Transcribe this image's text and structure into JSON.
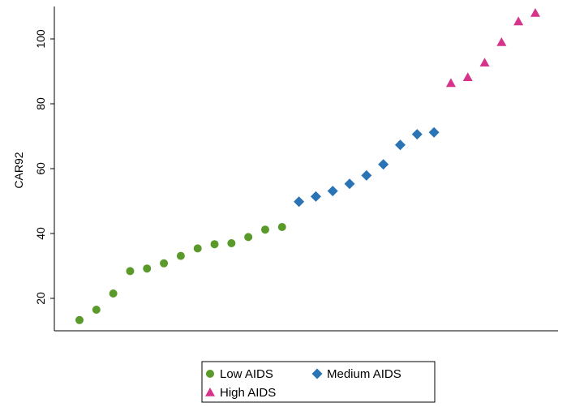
{
  "chart_data": {
    "type": "scatter",
    "xlabel": "",
    "ylabel": "CAR92",
    "ylim": [
      10,
      110
    ],
    "yticks": [
      20,
      40,
      60,
      80,
      100
    ],
    "grid": false,
    "legend_position": "bottom",
    "series": [
      {
        "name": "Low AIDS",
        "marker": "circle",
        "color": "#5a9a2a",
        "x": [
          1,
          2,
          3,
          4,
          5,
          6,
          7,
          8,
          9,
          10,
          11,
          12,
          13
        ],
        "values": [
          13.3,
          16.5,
          21.5,
          28.4,
          29.2,
          30.8,
          33.1,
          35.4,
          36.7,
          37.0,
          38.9,
          41.2,
          42.0
        ]
      },
      {
        "name": "Medium AIDS",
        "marker": "diamond",
        "color": "#2a73b5",
        "x": [
          14,
          15,
          16,
          17,
          18,
          19,
          20,
          21,
          22
        ],
        "values": [
          49.8,
          51.4,
          53.1,
          55.3,
          57.9,
          61.3,
          67.3,
          70.6,
          71.2
        ]
      },
      {
        "name": "High AIDS",
        "marker": "triangle",
        "color": "#d6338a",
        "x": [
          23,
          24,
          25,
          26,
          27,
          28
        ],
        "values": [
          86.4,
          88.2,
          92.7,
          99.0,
          105.4,
          108.0
        ]
      }
    ]
  }
}
